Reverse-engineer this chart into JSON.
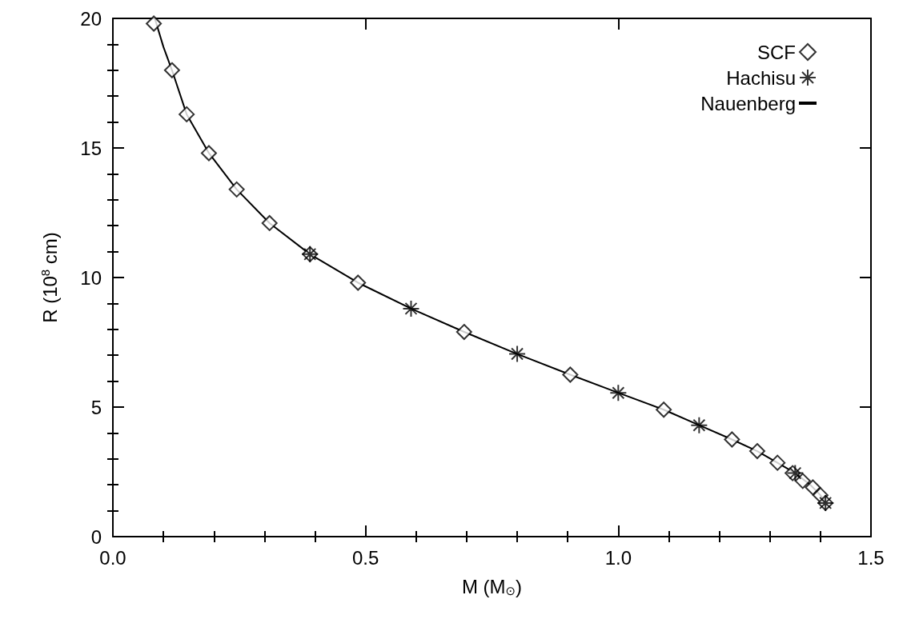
{
  "chart_data": {
    "type": "scatter",
    "xlabel": "M (M$_{⊙}$)",
    "ylabel": "R (10$^{8}$ cm)",
    "xlim": [
      0,
      1.5
    ],
    "ylim": [
      0,
      20
    ],
    "xticks": [
      {
        "value": 0,
        "label": "0.0"
      },
      {
        "value": 0.1,
        "label": null
      },
      {
        "value": 0.2,
        "label": null
      },
      {
        "value": 0.3,
        "label": null
      },
      {
        "value": 0.4,
        "label": null
      },
      {
        "value": 0.5,
        "label": "0.5"
      },
      {
        "value": 0.6,
        "label": null
      },
      {
        "value": 0.7,
        "label": null
      },
      {
        "value": 0.8,
        "label": null
      },
      {
        "value": 0.9,
        "label": null
      },
      {
        "value": 1,
        "label": "1.0"
      },
      {
        "value": 1.1,
        "label": null
      },
      {
        "value": 1.2,
        "label": null
      },
      {
        "value": 1.3,
        "label": null
      },
      {
        "value": 1.4,
        "label": null
      },
      {
        "value": 1.5,
        "label": "1.5"
      }
    ],
    "yticks": [
      0,
      {
        "value": 1,
        "label": null
      },
      {
        "value": 2,
        "label": null
      },
      {
        "value": 3,
        "label": null
      },
      {
        "value": 4,
        "label": null
      },
      5,
      {
        "value": 6,
        "label": null
      },
      {
        "value": 7,
        "label": null
      },
      {
        "value": 8,
        "label": null
      },
      {
        "value": 9,
        "label": null
      },
      10,
      {
        "value": 11,
        "label": null
      },
      {
        "value": 12,
        "label": null
      },
      {
        "value": 13,
        "label": null
      },
      {
        "value": 14,
        "label": null
      },
      15,
      {
        "value": 16,
        "label": null
      },
      {
        "value": 17,
        "label": null
      },
      {
        "value": 18,
        "label": null
      },
      {
        "value": 19,
        "label": null
      },
      20
    ],
    "grid": false,
    "legend": "top right",
    "series": [
      {
        "name": "SCF",
        "marker": "diamond",
        "color": "#000000",
        "x": [
          0.081,
          0.117,
          0.146,
          0.19,
          0.245,
          0.31,
          0.39,
          0.485,
          0.695,
          0.905,
          1.09,
          1.225,
          1.275,
          1.315,
          1.345,
          1.365,
          1.385,
          1.4,
          1.41
        ],
        "values": [
          19.8,
          18.0,
          16.3,
          14.8,
          13.4,
          12.1,
          10.9,
          9.8,
          7.9,
          6.25,
          4.9,
          3.75,
          3.3,
          2.85,
          2.45,
          2.15,
          1.9,
          1.6,
          1.3
        ]
      },
      {
        "name": "Hachisu",
        "marker": "cross",
        "color": "#000000",
        "x": [
          0.39,
          0.59,
          0.8,
          1.0,
          1.16,
          1.35,
          1.41
        ],
        "values": [
          10.9,
          8.8,
          7.05,
          5.55,
          4.3,
          2.45,
          1.3
        ]
      },
      {
        "name": "Nauenberg",
        "type": "line",
        "marker": "none",
        "line_style": "solid",
        "color": "#000000",
        "x": [
          0.083,
          0.1,
          0.117,
          0.146,
          0.19,
          0.245,
          0.31,
          0.39,
          0.485,
          0.59,
          0.695,
          0.8,
          0.905,
          1.0,
          1.09,
          1.16,
          1.225,
          1.275,
          1.315,
          1.35,
          1.38,
          1.4,
          1.41
        ],
        "values": [
          20.0,
          18.9,
          18.0,
          16.3,
          14.8,
          13.4,
          12.1,
          10.9,
          9.8,
          8.8,
          7.9,
          7.05,
          6.25,
          5.55,
          4.9,
          4.3,
          3.75,
          3.3,
          2.85,
          2.45,
          2.0,
          1.6,
          1.3
        ]
      }
    ]
  }
}
